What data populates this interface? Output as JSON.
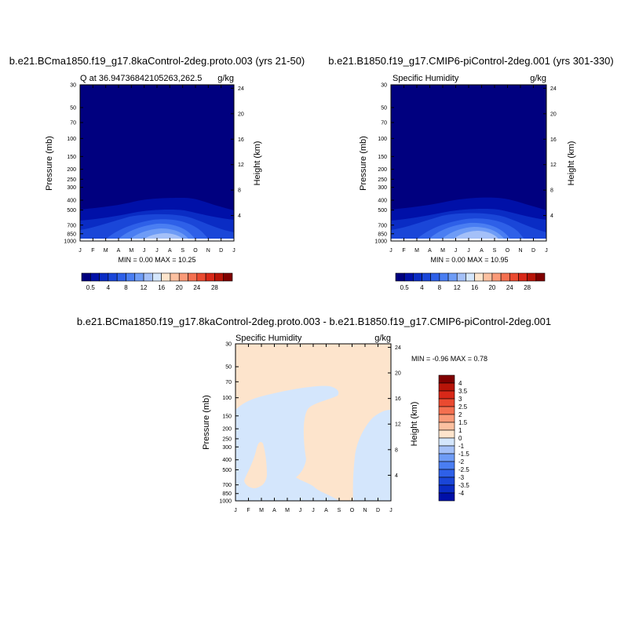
{
  "chart_data": [
    {
      "type": "heatmap",
      "title": "b.e21.BCma1850.f19_g17.8kaControl-2deg.proto.003 (yrs 21-50)",
      "subtitle_left": "Q at 36.94736842105263,262.5",
      "subtitle_right": "g/kg",
      "ylabel": "Pressure (mb)",
      "ylabel_right": "Height (km)",
      "x_ticks": [
        "J",
        "F",
        "M",
        "A",
        "M",
        "J",
        "J",
        "A",
        "S",
        "O",
        "N",
        "D",
        "J"
      ],
      "y_ticks": [
        "30",
        "50",
        "70",
        "100",
        "150",
        "200",
        "250",
        "300",
        "400",
        "500",
        "700",
        "850",
        "1000"
      ],
      "y_ticks_right": [
        "24",
        "20",
        "16",
        "12",
        "8",
        "4"
      ],
      "stats": "MIN =   0.00 MAX =  10.25",
      "min": 0.0,
      "max": 10.25
    },
    {
      "type": "heatmap",
      "title": "b.e21.B1850.f19_g17.CMIP6-piControl-2deg.001 (yrs 301-330)",
      "subtitle_left": "Specific Humidity",
      "subtitle_right": "g/kg",
      "ylabel": "Pressure (mb)",
      "ylabel_right": "Height (km)",
      "x_ticks": [
        "J",
        "F",
        "M",
        "A",
        "M",
        "J",
        "J",
        "A",
        "S",
        "O",
        "N",
        "D",
        "J"
      ],
      "y_ticks": [
        "30",
        "50",
        "70",
        "100",
        "150",
        "200",
        "250",
        "300",
        "400",
        "500",
        "700",
        "850",
        "1000"
      ],
      "y_ticks_right": [
        "24",
        "20",
        "16",
        "12",
        "8",
        "4"
      ],
      "stats": "MIN =   0.00 MAX =  10.95",
      "min": 0.0,
      "max": 10.95
    },
    {
      "type": "heatmap",
      "title": "b.e21.BCma1850.f19_g17.8kaControl-2deg.proto.003 - b.e21.B1850.f19_g17.CMIP6-piControl-2deg.001",
      "subtitle_left": "Specific Humidity",
      "subtitle_right": "g/kg",
      "ylabel": "Pressure (mb)",
      "ylabel_right": "Height (km)",
      "x_ticks": [
        "J",
        "F",
        "M",
        "A",
        "M",
        "J",
        "J",
        "A",
        "S",
        "O",
        "N",
        "D",
        "J"
      ],
      "y_ticks": [
        "30",
        "50",
        "70",
        "100",
        "150",
        "200",
        "250",
        "300",
        "400",
        "500",
        "700",
        "850",
        "1000"
      ],
      "y_ticks_right": [
        "24",
        "20",
        "16",
        "12",
        "8",
        "4"
      ],
      "stats": "MIN =  -0.96 MAX =   0.78",
      "min": -0.96,
      "max": 0.78
    }
  ],
  "colorbar_horizontal": {
    "labels": [
      "0.5",
      "4",
      "8",
      "12",
      "16",
      "20",
      "24",
      "28"
    ],
    "colors": [
      "#00007f",
      "#0010a8",
      "#0a2cc4",
      "#1a46d8",
      "#2e60e8",
      "#4a7ef2",
      "#6e9cf6",
      "#a4c0f8",
      "#d4e6fc",
      "#fde4cc",
      "#fcc0a0",
      "#fa9a78",
      "#f47050",
      "#ea4a30",
      "#d82818",
      "#b81408",
      "#800000"
    ]
  },
  "colorbar_vertical": {
    "labels": [
      "4",
      "3.5",
      "3",
      "2.5",
      "2",
      "1.5",
      "1",
      "0",
      "-1",
      "-1.5",
      "-2",
      "-2.5",
      "-3",
      "-3.5",
      "-4"
    ],
    "colors": [
      "#800000",
      "#b81408",
      "#d82818",
      "#ea4a30",
      "#f47050",
      "#fa9a78",
      "#fcc0a0",
      "#fde4cc",
      "#d4e6fc",
      "#a4c0f8",
      "#6e9cf6",
      "#4a7ef2",
      "#2e60e8",
      "#1a46d8",
      "#0a2cc4",
      "#0010a8"
    ]
  },
  "colors": {
    "level1": "#00007f",
    "level2": "#0010a8",
    "level3": "#0a2cc4",
    "level4": "#1a46d8",
    "level5": "#2e60e8",
    "level6": "#4a7ef2",
    "level7": "#6e9cf6",
    "level8": "#a4c0f8",
    "diff_pos": "#fde4cc",
    "diff_neg": "#d4e6fc"
  }
}
